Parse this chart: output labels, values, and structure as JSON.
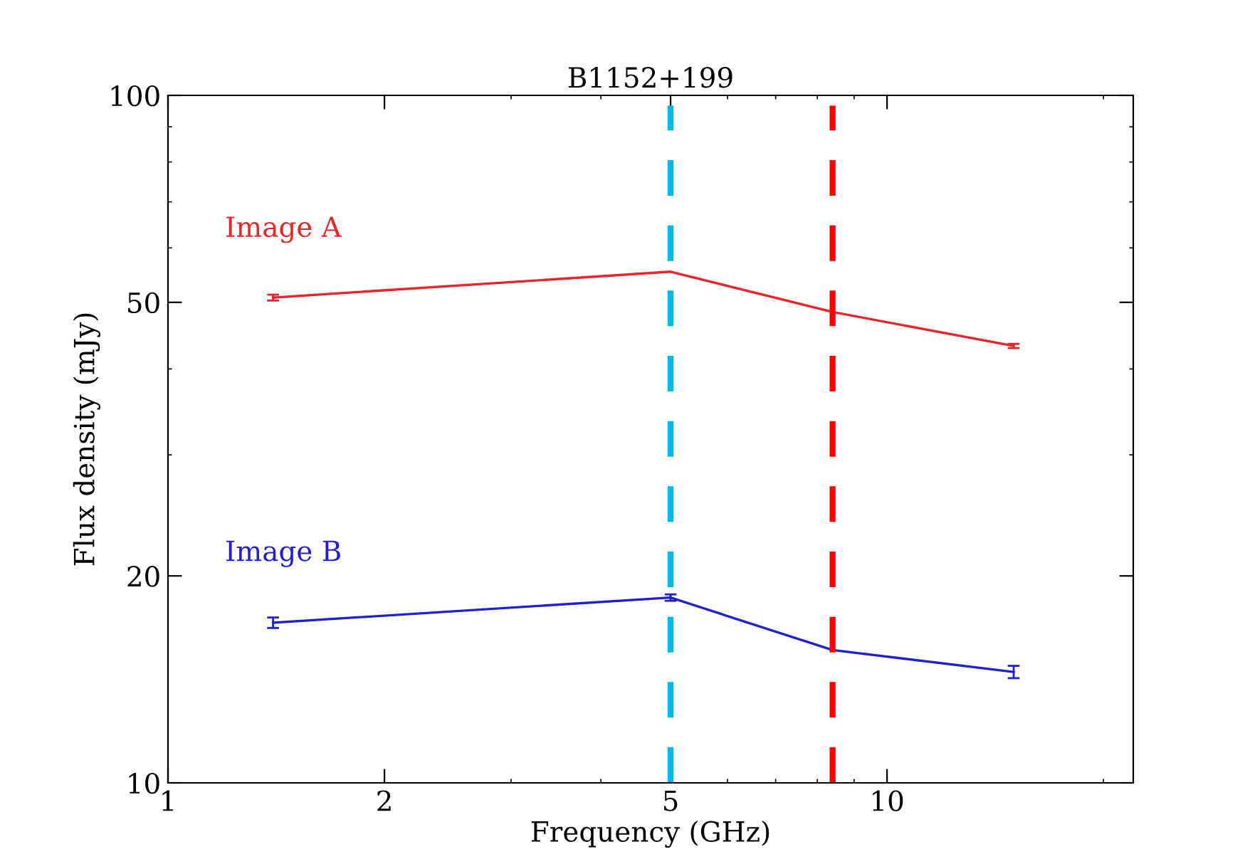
{
  "chart_data": {
    "type": "line",
    "title": "B1152+199",
    "xlabel": "Frequency (GHz)",
    "ylabel": "Flux density (mJy)",
    "log": "xy",
    "x": [
      1.4,
      5.0,
      8.4,
      15.0
    ],
    "series": [
      {
        "name": "Image A",
        "color": "#e8252b",
        "values": [
          50.8,
          55.4,
          48.4,
          43.2
        ],
        "errors": [
          0.5,
          null,
          null,
          0.3
        ]
      },
      {
        "name": "Image B",
        "color": "#2020d0",
        "values": [
          17.1,
          18.6,
          15.6,
          14.5
        ],
        "errors": [
          0.3,
          0.2,
          null,
          0.3
        ]
      }
    ],
    "xlim": [
      1,
      22
    ],
    "xticks": [
      1,
      2,
      5,
      10
    ],
    "ylim": [
      10,
      100
    ],
    "yticks": [
      10,
      20,
      50,
      100
    ],
    "grid": false,
    "marker": "none",
    "line_style": "solid",
    "ref_lines": [
      {
        "axis": "x",
        "value": 5.0,
        "label": null,
        "color": "#00b8f0",
        "line_style": "dashed"
      },
      {
        "axis": "x",
        "value": 8.4,
        "label": null,
        "color": "#ff0000",
        "line_style": "dashed"
      }
    ]
  }
}
